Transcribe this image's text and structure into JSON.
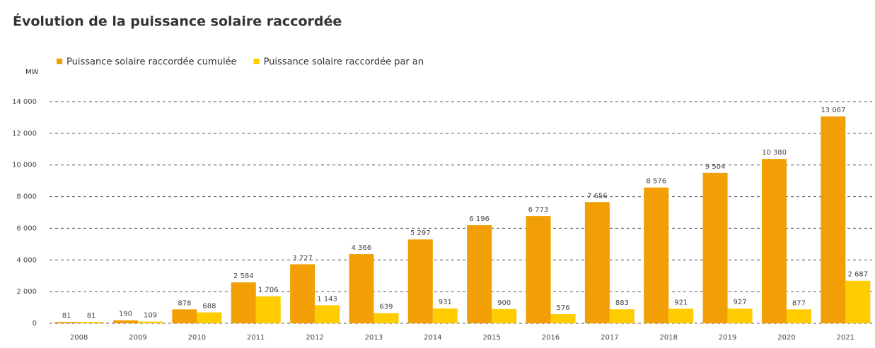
{
  "chart_data": {
    "type": "bar",
    "title": "Évolution de la puissance solaire raccordée",
    "y_label": "MW",
    "categories": [
      "2008",
      "2009",
      "2010",
      "2011",
      "2012",
      "2013",
      "2014",
      "2015",
      "2016",
      "2017",
      "2018",
      "2019",
      "2020",
      "2021"
    ],
    "series": [
      {
        "name": "Puissance solaire raccordée cumulée",
        "color": "#f29f05",
        "values": [
          81,
          190,
          878,
          2584,
          3727,
          4366,
          5297,
          6196,
          6773,
          7656,
          8576,
          9504,
          10380,
          13067
        ],
        "value_labels": [
          "81",
          "190",
          "878",
          "2 584",
          "3 727",
          "4 366",
          "5 297",
          "6 196",
          "6 773",
          "7 656",
          "8 576",
          "9 504",
          "10 380",
          "13 067"
        ]
      },
      {
        "name": "Puissance solaire raccordée par an",
        "color": "#ffcc00",
        "values": [
          81,
          109,
          688,
          1706,
          1143,
          639,
          931,
          900,
          576,
          883,
          921,
          927,
          877,
          2687
        ],
        "value_labels": [
          "81",
          "109",
          "688",
          "1 706",
          "1 143",
          "639",
          "931",
          "900",
          "576",
          "883",
          "921",
          "927",
          "877",
          "2 687"
        ]
      }
    ],
    "ylim": [
      0,
      14000
    ],
    "yticks": [
      0,
      {
        "value": 2000,
        "label": "2 000"
      },
      {
        "value": 4000,
        "label": "4 000"
      },
      {
        "value": 6000,
        "label": "6 000"
      },
      {
        "value": 8000,
        "label": "8 000"
      },
      {
        "value": 10000,
        "label": "10 000"
      },
      {
        "value": 12000,
        "label": "12 000"
      },
      {
        "value": 14000,
        "label": "14 000"
      }
    ],
    "grid": true,
    "legend": "top-left"
  }
}
